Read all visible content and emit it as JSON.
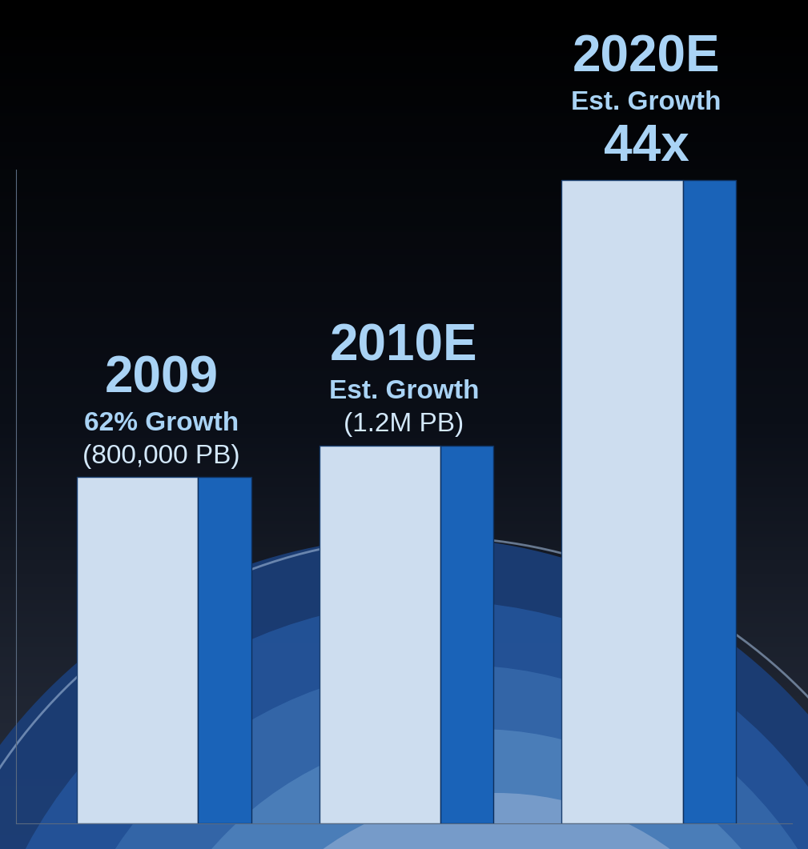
{
  "chart_data": {
    "type": "bar",
    "categories": [
      "2009",
      "2010E",
      "2020E"
    ],
    "values": [
      800000,
      1200000,
      35200000
    ],
    "value_labels": [
      "(800,000 PB)",
      "(1.2M PB)",
      null
    ],
    "data_labels": true,
    "annotations": [
      {
        "category": "2009",
        "text": "62% Growth"
      },
      {
        "category": "2010E",
        "text": "Est. Growth"
      },
      {
        "category": "2020E",
        "text": "Est. Growth"
      },
      {
        "category": "2020E",
        "text": "44x"
      }
    ],
    "color": "#1a63b8",
    "log": "y",
    "ylim": [
      10000,
      40000000
    ],
    "yticks": [],
    "tick_labels": false,
    "grid": false
  }
}
